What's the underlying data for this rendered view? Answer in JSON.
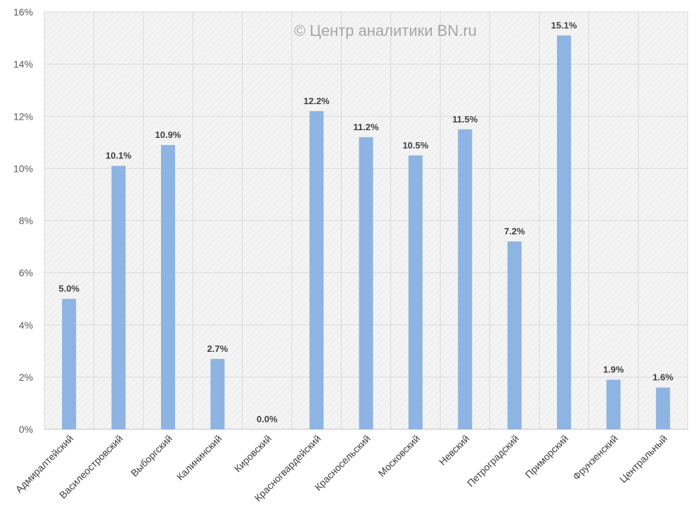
{
  "watermark": "© Центр аналитики BN.ru",
  "colors": {
    "bar": "#8db4e2",
    "grid": "#d9d9d9",
    "plot_bg": "#f2f2f2"
  },
  "chart_data": {
    "type": "bar",
    "title": "",
    "xlabel": "",
    "ylabel": "",
    "ylim": [
      0,
      16
    ],
    "yticks": [
      0,
      2,
      4,
      6,
      8,
      10,
      12,
      14,
      16
    ],
    "ytick_labels": [
      "0%",
      "2%",
      "4%",
      "6%",
      "8%",
      "10%",
      "12%",
      "14%",
      "16%"
    ],
    "grid": true,
    "categories": [
      "Адмиралтейский",
      "Василеостровский",
      "Выборгский",
      "Калининский",
      "Кировский",
      "Красногвардейский",
      "Красносельский",
      "Московский",
      "Невский",
      "Петроградский",
      "Приморский",
      "Фрунзенский",
      "Центральный"
    ],
    "values": [
      5.0,
      10.1,
      10.9,
      2.7,
      0.0,
      12.2,
      11.2,
      10.5,
      11.5,
      7.2,
      15.1,
      1.9,
      1.6
    ],
    "data_labels": [
      "5.0%",
      "10.1%",
      "10.9%",
      "2.7%",
      "0.0%",
      "12.2%",
      "11.2%",
      "10.5%",
      "11.5%",
      "7.2%",
      "15.1%",
      "1.9%",
      "1.6%"
    ]
  }
}
